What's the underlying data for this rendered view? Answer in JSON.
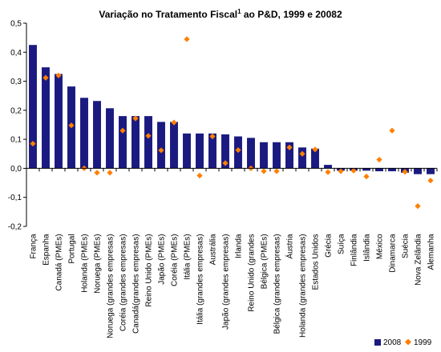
{
  "chart_data": {
    "type": "bar",
    "title": "Variação no Tratamento Fiscal",
    "title_superscript": "1",
    "title_rest": " ao P&D, 1999 e 20082",
    "categories": [
      "França",
      "Espanha",
      "Canadá (PMEs)",
      "Portugal",
      "Holanda (PMEs)",
      "Noruega (PMEs)",
      "Noruega (grandes empresas)",
      "Coréia (grandes empresas)",
      "Canadá(grandes empresas)",
      "Reino Unido (PMEs)",
      "Japão (PMEs)",
      "Coréia (PMEs)",
      "Itália (PMEs)",
      "Itália (grandes empresas)",
      "Austrália",
      "Japão (grandes empresas)",
      "Irlanda",
      "Reino Unido (grandes",
      "Bélgica (PMEs)",
      "Bélgica (grandes empresas)",
      "Áustria",
      "Holanda (grandes empresas)",
      "Estados Unidos",
      "Grécia",
      "Suíça",
      "Finlândia",
      "Islândia",
      "México",
      "Dinamarca",
      "Suécia",
      "Nova Zelândia",
      "Alemanha"
    ],
    "series": [
      {
        "name": "2008",
        "kind": "bar",
        "color": "#1a1a80",
        "values": [
          0.425,
          0.348,
          0.325,
          0.282,
          0.243,
          0.232,
          0.207,
          0.18,
          0.18,
          0.18,
          0.16,
          0.16,
          0.12,
          0.12,
          0.12,
          0.117,
          0.11,
          0.105,
          0.09,
          0.09,
          0.09,
          0.072,
          0.068,
          0.012,
          -0.008,
          -0.008,
          -0.008,
          -0.01,
          -0.01,
          -0.015,
          -0.02,
          -0.02
        ]
      },
      {
        "name": "1999",
        "kind": "marker",
        "color": "#ff7f00",
        "values": [
          0.085,
          0.312,
          0.32,
          0.148,
          0.0,
          -0.015,
          -0.015,
          0.13,
          0.172,
          0.112,
          0.062,
          0.158,
          0.445,
          -0.025,
          0.11,
          0.018,
          0.063,
          0.0,
          -0.01,
          -0.01,
          0.072,
          0.05,
          0.065,
          -0.013,
          -0.01,
          -0.008,
          -0.028,
          0.03,
          0.13,
          -0.012,
          -0.13,
          -0.042
        ]
      }
    ],
    "ylim": [
      -0.2,
      0.5
    ],
    "yticks": [
      "-0,2",
      "-0,1",
      "0,0",
      "0,1",
      "0,2",
      "0,3",
      "0,4",
      "0,5"
    ],
    "ytick_values": [
      -0.2,
      -0.1,
      0.0,
      0.1,
      0.2,
      0.3,
      0.4,
      0.5
    ],
    "grid": false,
    "legend_position": "bottom-right"
  }
}
